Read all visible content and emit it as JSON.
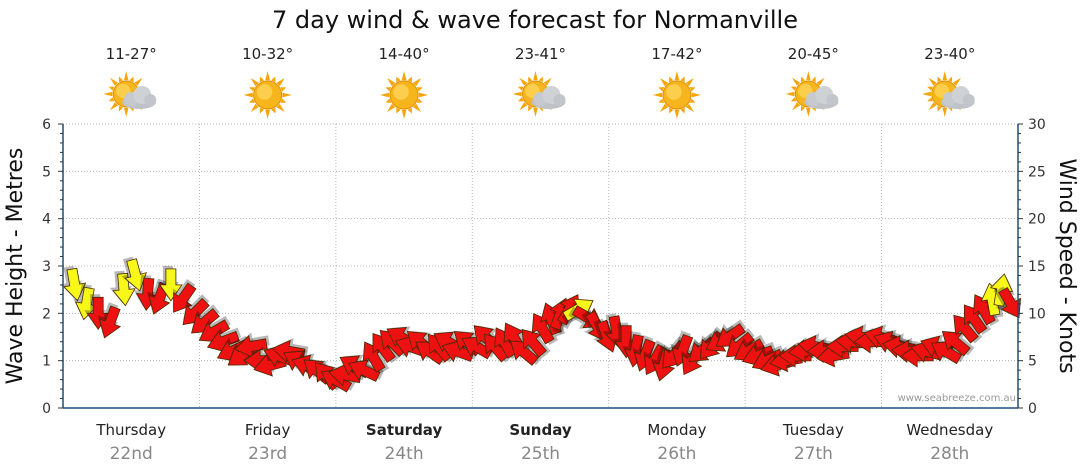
{
  "title": "7 day wind & wave forecast for Normanville",
  "credit": "www.seabreeze.com.au",
  "colors": {
    "wind_arrow": "#ee1111",
    "wave_arrow": "#f7f71a",
    "axis": "#1f4f7a"
  },
  "days": [
    {
      "name": "Thursday",
      "date": "22nd",
      "temp": "11-27°",
      "icon": "sun-cloud-icon",
      "bold": false
    },
    {
      "name": "Friday",
      "date": "23rd",
      "temp": "10-32°",
      "icon": "sun-icon",
      "bold": false
    },
    {
      "name": "Saturday",
      "date": "24th",
      "temp": "14-40°",
      "icon": "sun-icon",
      "bold": true
    },
    {
      "name": "Sunday",
      "date": "25th",
      "temp": "23-41°",
      "icon": "sun-cloud-icon",
      "bold": true
    },
    {
      "name": "Monday",
      "date": "26th",
      "temp": "17-42°",
      "icon": "sun-icon",
      "bold": false
    },
    {
      "name": "Tuesday",
      "date": "27th",
      "temp": "20-45°",
      "icon": "sun-cloud-icon",
      "bold": false
    },
    {
      "name": "Wednesday",
      "date": "28th",
      "temp": "23-40°",
      "icon": "sun-cloud-icon",
      "bold": false
    }
  ],
  "chart_data": {
    "type": "scatter",
    "title": "7 day wind & wave forecast for Normanville",
    "ylabel_left": "Wave Height - Metres",
    "ylabel_right": "Wind Speed - Knots",
    "left_axis": {
      "min": 0,
      "max": 6,
      "ticks": [
        "0",
        "1",
        "2",
        "3",
        "4",
        "5",
        "6"
      ]
    },
    "right_axis": {
      "min": 0,
      "max": 30,
      "ticks": [
        "0",
        "5",
        "10",
        "15",
        "20",
        "25",
        "30"
      ]
    },
    "x_days": 7,
    "grid": true,
    "series": [
      {
        "type": "wind_arrows",
        "units": "knots",
        "points": [
          [
            0.1,
            13.0,
            170,
            "y"
          ],
          [
            0.2,
            11.0,
            190,
            "y"
          ],
          [
            0.3,
            10.0,
            180,
            "r"
          ],
          [
            0.4,
            9.0,
            200,
            "r"
          ],
          [
            0.52,
            12.5,
            175,
            "y"
          ],
          [
            0.62,
            14.0,
            165,
            "y"
          ],
          [
            0.72,
            12.0,
            185,
            "r"
          ],
          [
            0.82,
            11.5,
            200,
            "r"
          ],
          [
            0.92,
            13.0,
            180,
            "y"
          ],
          [
            1.02,
            11.5,
            215,
            "r"
          ],
          [
            1.12,
            10.0,
            225,
            "r"
          ],
          [
            1.2,
            9.0,
            230,
            "r"
          ],
          [
            1.28,
            8.0,
            240,
            "r"
          ],
          [
            1.36,
            7.0,
            250,
            "r"
          ],
          [
            1.44,
            6.0,
            245,
            "r"
          ],
          [
            1.52,
            5.5,
            235,
            "r"
          ],
          [
            1.6,
            6.5,
            260,
            "r"
          ],
          [
            1.68,
            5.0,
            270,
            "r"
          ],
          [
            1.76,
            4.5,
            255,
            "r"
          ],
          [
            1.84,
            5.5,
            290,
            "r"
          ],
          [
            1.92,
            6.0,
            280,
            "r"
          ],
          [
            2.0,
            5.0,
            300,
            "r"
          ],
          [
            2.08,
            4.5,
            290,
            "r"
          ],
          [
            2.16,
            4.0,
            310,
            "r"
          ],
          [
            2.24,
            3.5,
            320,
            "r"
          ],
          [
            2.32,
            3.0,
            300,
            "r"
          ],
          [
            2.4,
            3.5,
            280,
            "r"
          ],
          [
            2.48,
            4.5,
            300,
            "r"
          ],
          [
            2.56,
            4.0,
            295,
            "r"
          ],
          [
            2.64,
            5.5,
            330,
            "r"
          ],
          [
            2.72,
            6.5,
            325,
            "r"
          ],
          [
            2.8,
            7.0,
            315,
            "r"
          ],
          [
            2.88,
            7.5,
            300,
            "r"
          ],
          [
            2.96,
            6.5,
            290,
            "r"
          ],
          [
            3.04,
            7.0,
            310,
            "r"
          ],
          [
            3.12,
            6.0,
            305,
            "r"
          ],
          [
            3.2,
            6.5,
            320,
            "r"
          ],
          [
            3.28,
            7.0,
            300,
            "r"
          ],
          [
            3.36,
            6.0,
            290,
            "r"
          ],
          [
            3.44,
            7.0,
            310,
            "r"
          ],
          [
            3.52,
            6.5,
            300,
            "r"
          ],
          [
            3.6,
            7.5,
            315,
            "r"
          ],
          [
            3.68,
            6.5,
            320,
            "r"
          ],
          [
            3.76,
            7.0,
            330,
            "r"
          ],
          [
            3.84,
            7.5,
            330,
            "r"
          ],
          [
            3.92,
            6.0,
            310,
            "r"
          ],
          [
            4.0,
            7.0,
            320,
            "r"
          ],
          [
            4.08,
            8.5,
            330,
            "r"
          ],
          [
            4.16,
            9.5,
            340,
            "r"
          ],
          [
            4.24,
            10.0,
            20,
            "r"
          ],
          [
            4.32,
            10.5,
            30,
            "r"
          ],
          [
            4.4,
            10.5,
            60,
            "y"
          ],
          [
            4.48,
            9.5,
            120,
            "r"
          ],
          [
            4.56,
            8.5,
            150,
            "r"
          ],
          [
            4.64,
            7.5,
            160,
            "r"
          ],
          [
            4.72,
            8.0,
            170,
            "r"
          ],
          [
            4.8,
            7.0,
            180,
            "r"
          ],
          [
            4.88,
            6.0,
            190,
            "r"
          ],
          [
            4.96,
            5.5,
            200,
            "r"
          ],
          [
            5.04,
            5.0,
            210,
            "r"
          ],
          [
            5.12,
            4.5,
            195,
            "r"
          ],
          [
            5.2,
            5.5,
            220,
            "r"
          ],
          [
            5.28,
            6.0,
            200,
            "r"
          ],
          [
            5.36,
            5.0,
            210,
            "r"
          ],
          [
            5.44,
            6.0,
            230,
            "r"
          ],
          [
            5.52,
            6.5,
            220,
            "r"
          ],
          [
            5.6,
            7.0,
            240,
            "r"
          ],
          [
            5.68,
            7.5,
            235,
            "r"
          ],
          [
            5.76,
            6.5,
            230,
            "r"
          ],
          [
            5.84,
            6.0,
            240,
            "r"
          ],
          [
            5.92,
            5.5,
            250,
            "r"
          ],
          [
            6.0,
            5.0,
            245,
            "r"
          ],
          [
            6.08,
            4.5,
            255,
            "r"
          ],
          [
            6.16,
            5.0,
            260,
            "r"
          ],
          [
            6.24,
            5.5,
            270,
            "r"
          ],
          [
            6.32,
            6.0,
            265,
            "r"
          ],
          [
            6.4,
            6.5,
            280,
            "r"
          ],
          [
            6.48,
            6.0,
            270,
            "r"
          ],
          [
            6.56,
            5.5,
            260,
            "r"
          ],
          [
            6.64,
            6.5,
            270,
            "r"
          ],
          [
            6.72,
            7.0,
            275,
            "r"
          ],
          [
            6.8,
            7.5,
            280,
            "r"
          ],
          [
            6.88,
            7.0,
            270,
            "r"
          ],
          [
            6.96,
            7.5,
            285,
            "r"
          ],
          [
            7.04,
            7.0,
            290,
            "r"
          ],
          [
            7.12,
            6.5,
            280,
            "r"
          ],
          [
            7.2,
            6.0,
            275,
            "r"
          ],
          [
            7.28,
            5.5,
            270,
            "r"
          ],
          [
            7.36,
            6.0,
            285,
            "r"
          ],
          [
            7.44,
            6.5,
            290,
            "r"
          ],
          [
            7.52,
            6.0,
            300,
            "r"
          ],
          [
            7.6,
            7.0,
            310,
            "r"
          ],
          [
            7.68,
            8.5,
            320,
            "r"
          ],
          [
            7.76,
            9.5,
            325,
            "r"
          ],
          [
            7.84,
            10.5,
            330,
            "r"
          ],
          [
            7.92,
            11.5,
            350,
            "y"
          ],
          [
            8.0,
            12.5,
            10,
            "y"
          ],
          [
            8.08,
            11.0,
            150,
            "r"
          ]
        ]
      }
    ]
  }
}
